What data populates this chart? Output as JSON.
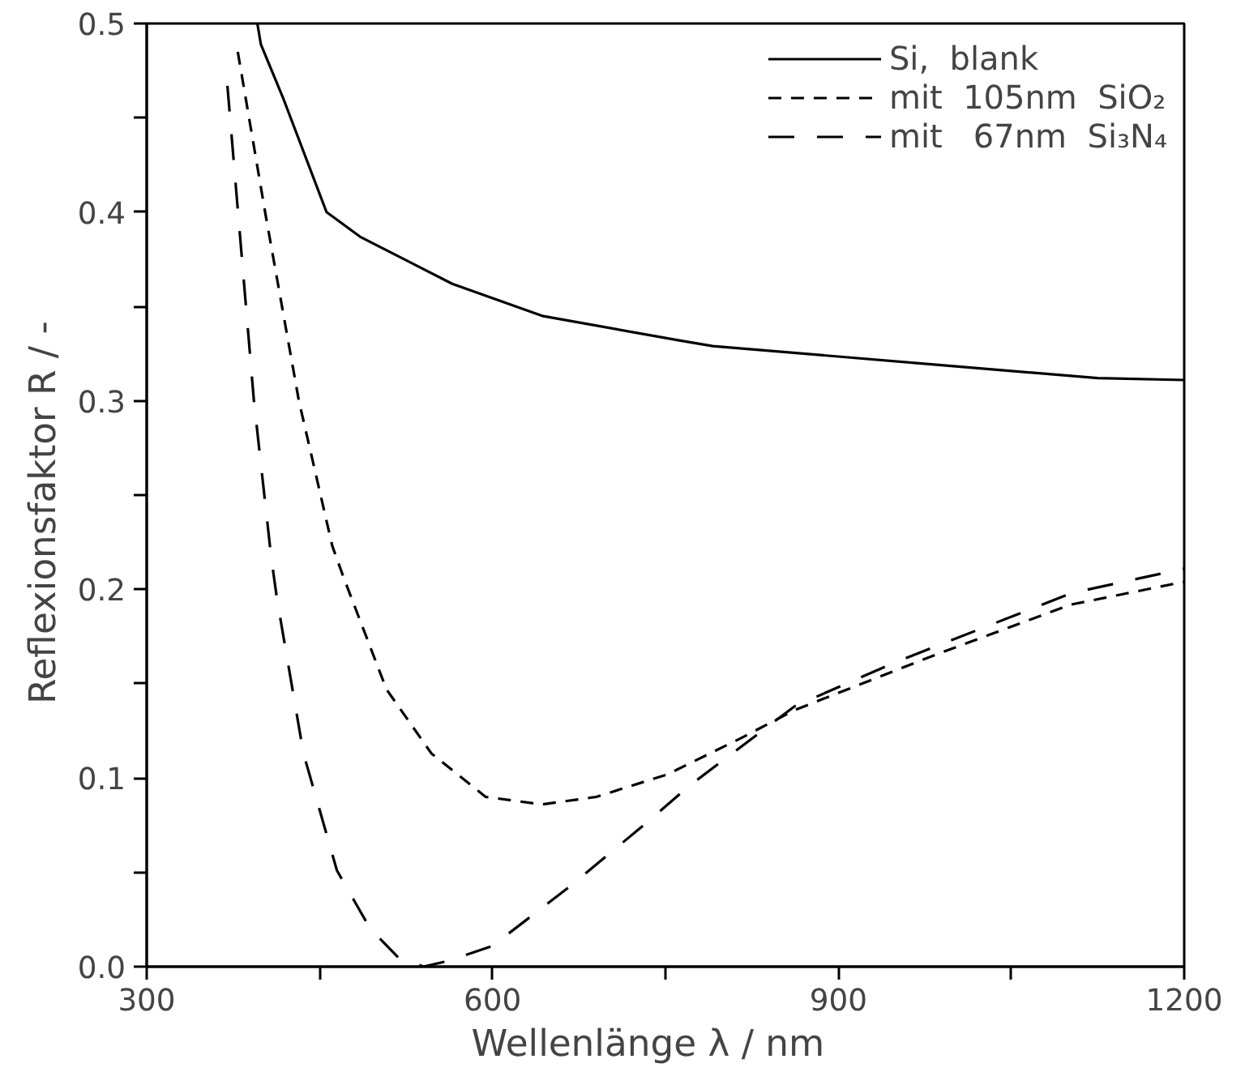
{
  "chart_data": {
    "type": "line",
    "xlabel": "Wellenlänge  λ  /  nm",
    "ylabel": "Reflexionsfaktor  R  /  -",
    "xlim": [
      300,
      1200
    ],
    "ylim": [
      0,
      0.5
    ],
    "xticks": [
      300,
      {
        "value": 450,
        "label": null
      },
      600,
      {
        "value": 750,
        "label": null
      },
      900,
      {
        "value": 1050,
        "label": null
      },
      1200
    ],
    "yticks": [
      {
        "value": 0,
        "label": "0.0"
      },
      {
        "value": 0.05,
        "label": null
      },
      0.1,
      {
        "value": 0.15,
        "label": null
      },
      0.2,
      {
        "value": 0.25,
        "label": null
      },
      0.3,
      {
        "value": 0.35,
        "label": null
      },
      0.4,
      {
        "value": 0.45,
        "label": null
      },
      0.5
    ],
    "grid": false,
    "legend": "top right",
    "marker": "none",
    "series": [
      {
        "name": "Si,  blank",
        "color": "#000000",
        "line_style": "solid",
        "x": [
          396,
          399,
          418,
          456,
          485,
          565,
          643,
          762,
          791,
          987,
          1125,
          1200
        ],
        "values": [
          0.5,
          0.489,
          0.461,
          0.4,
          0.387,
          0.362,
          0.345,
          0.332,
          0.329,
          0.319,
          0.312,
          0.311
        ]
      },
      {
        "name": "mit  105nm  SiO₂",
        "color": "#000000",
        "line_style": "dashed",
        "x": [
          379,
          403,
          432,
          461,
          471,
          508,
          547,
          594,
          643,
          690,
          752,
          815,
          862,
          987,
          1102,
          1200
        ],
        "values": [
          0.485,
          0.399,
          0.3,
          0.223,
          0.206,
          0.147,
          0.113,
          0.09,
          0.086,
          0.09,
          0.102,
          0.121,
          0.136,
          0.166,
          0.192,
          0.204
        ]
      },
      {
        "name": "mit   67nm  Si₃N₄",
        "color": "#000000",
        "line_style": "dashed",
        "x": [
          370,
          377,
          393,
          408,
          413,
          436,
          465,
          494,
          518,
          540,
          561,
          600,
          666,
          733,
          771,
          862,
          948,
          1102,
          1200
        ],
        "values": [
          0.467,
          0.416,
          0.3,
          0.217,
          0.195,
          0.113,
          0.051,
          0.02,
          0.005,
          0.0,
          0.003,
          0.011,
          0.042,
          0.076,
          0.096,
          0.138,
          0.161,
          0.198,
          0.211
        ]
      }
    ]
  }
}
